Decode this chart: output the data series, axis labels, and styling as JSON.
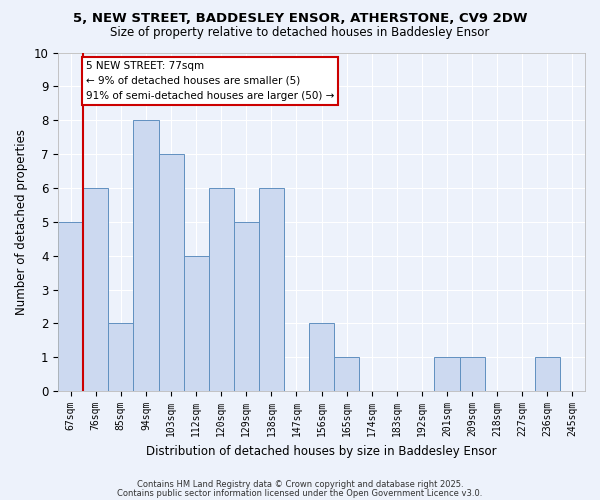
{
  "title1": "5, NEW STREET, BADDESLEY ENSOR, ATHERSTONE, CV9 2DW",
  "title2": "Size of property relative to detached houses in Baddesley Ensor",
  "xlabel": "Distribution of detached houses by size in Baddesley Ensor",
  "ylabel": "Number of detached properties",
  "categories": [
    "67sqm",
    "76sqm",
    "85sqm",
    "94sqm",
    "103sqm",
    "112sqm",
    "120sqm",
    "129sqm",
    "138sqm",
    "147sqm",
    "156sqm",
    "165sqm",
    "174sqm",
    "183sqm",
    "192sqm",
    "201sqm",
    "209sqm",
    "218sqm",
    "227sqm",
    "236sqm",
    "245sqm"
  ],
  "values": [
    5,
    6,
    2,
    8,
    7,
    4,
    6,
    5,
    6,
    0,
    2,
    1,
    0,
    0,
    0,
    1,
    1,
    0,
    0,
    1,
    0
  ],
  "bar_color": "#ccd9f0",
  "bar_edge_color": "#6090c0",
  "red_line_index": 0.57,
  "annotation_title": "5 NEW STREET: 77sqm",
  "annotation_line1": "← 9% of detached houses are smaller (5)",
  "annotation_line2": "91% of semi-detached houses are larger (50) →",
  "annotation_box_facecolor": "#ffffff",
  "annotation_box_edgecolor": "#cc0000",
  "footer1": "Contains HM Land Registry data © Crown copyright and database right 2025.",
  "footer2": "Contains public sector information licensed under the Open Government Licence v3.0.",
  "bg_color": "#edf2fb",
  "grid_color": "#ffffff",
  "ylim": [
    0,
    10
  ],
  "yticks": [
    0,
    1,
    2,
    3,
    4,
    5,
    6,
    7,
    8,
    9,
    10
  ]
}
